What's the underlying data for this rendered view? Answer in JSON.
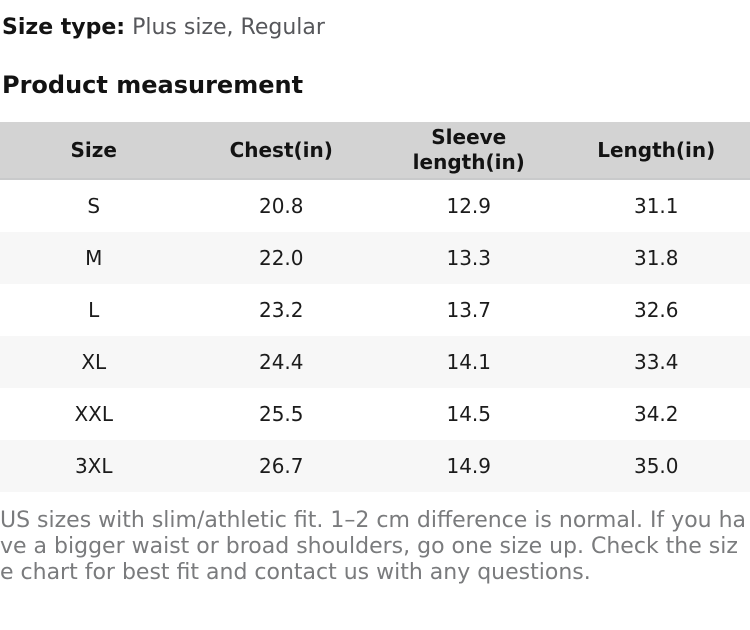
{
  "page": {
    "size_type_label": "Size type:",
    "size_type_value": "Plus size, Regular",
    "section_title": "Product measurement",
    "note": "US sizes with slim/athletic fit. 1–2 cm difference is normal. If you have a bigger waist or broad shoulders, go one size up. Check the size chart for best fit and contact us with any questions."
  },
  "table": {
    "headers": [
      "Size",
      "Chest(in)",
      "Sleeve length(in)",
      "Length(in)"
    ],
    "rows": [
      [
        "S",
        "20.8",
        "12.9",
        "31.1"
      ],
      [
        "M",
        "22.0",
        "13.3",
        "31.8"
      ],
      [
        "L",
        "23.2",
        "13.7",
        "32.6"
      ],
      [
        "XL",
        "24.4",
        "14.1",
        "33.4"
      ],
      [
        "XXL",
        "25.5",
        "14.5",
        "34.2"
      ],
      [
        "3XL",
        "26.7",
        "14.9",
        "35.0"
      ]
    ]
  },
  "colors": {
    "header_bg": "#d3d3d3",
    "header_border": "#c9cacb",
    "zebra_bg": "#f7f7f7",
    "text_dark": "#131313",
    "text_gray": "#56575b",
    "note_gray": "#7a7b7d"
  }
}
